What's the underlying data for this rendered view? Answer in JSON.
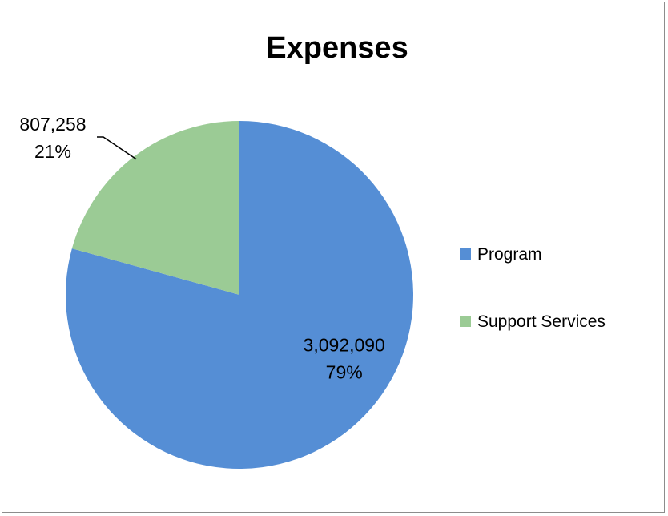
{
  "chart_data": {
    "type": "pie",
    "title": "Expenses",
    "start_angle_deg": 0,
    "direction": "clockwise",
    "legend_position": "right",
    "slices": [
      {
        "name": "Program",
        "value": 3092090,
        "value_label": "3,092,090",
        "percent_label": "79%",
        "color": "#558ed5"
      },
      {
        "name": "Support Services",
        "value": 807258,
        "value_label": "807,258",
        "percent_label": "21%",
        "color": "#9bcb95"
      }
    ]
  }
}
